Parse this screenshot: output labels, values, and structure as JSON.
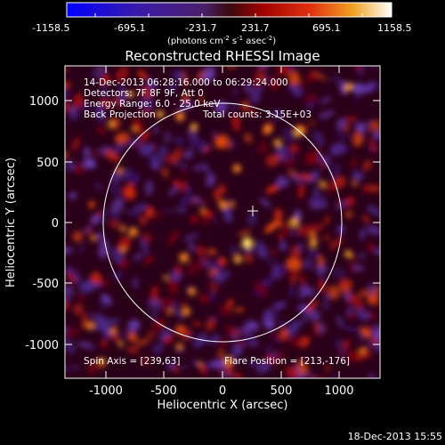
{
  "colorbar": {
    "ticks": [
      "-1158.5",
      "-695.1",
      "-231.7",
      "231.7",
      "695.1",
      "1158.5"
    ],
    "units_prefix": "(photons cm",
    "units_exp1": "-2",
    "units_mid": " s",
    "units_exp2": "-1",
    "units_mid2": " asec",
    "units_exp3": "-2",
    "units_suffix": ")"
  },
  "plot": {
    "title": "Reconstructed RHESSI Image",
    "xlabel": "Heliocentric X (arcsec)",
    "ylabel": "Heliocentric Y (arcsec)",
    "xticks": [
      "-1000",
      "-500",
      "0",
      "500",
      "1000"
    ],
    "yticks": [
      "1000",
      "500",
      "0",
      "-500",
      "-1000"
    ],
    "xlim": [
      -1280,
      1280
    ],
    "ylim": [
      -1280,
      1280
    ],
    "annotations": {
      "time_range": "14-Dec-2013 06:28:16.000 to 06:29:24.000",
      "detectors": "Detectors: 7F 8F 9F, Att 0",
      "energy": "Energy Range: 6.0 - 25.0 keV",
      "method": "Back Projection",
      "counts": "Total counts: 3.15E+03",
      "spin_axis": "Spin Axis = [239,63]",
      "flare_position": "Flare Position = [213,-176]"
    },
    "solar_disk_radius_arcsec": 975,
    "map_center": [
      213,
      93
    ]
  },
  "footer": {
    "date": "18-Dec-2013 15:55"
  },
  "colors": {
    "background": "#000000",
    "text": "#ffffff"
  }
}
